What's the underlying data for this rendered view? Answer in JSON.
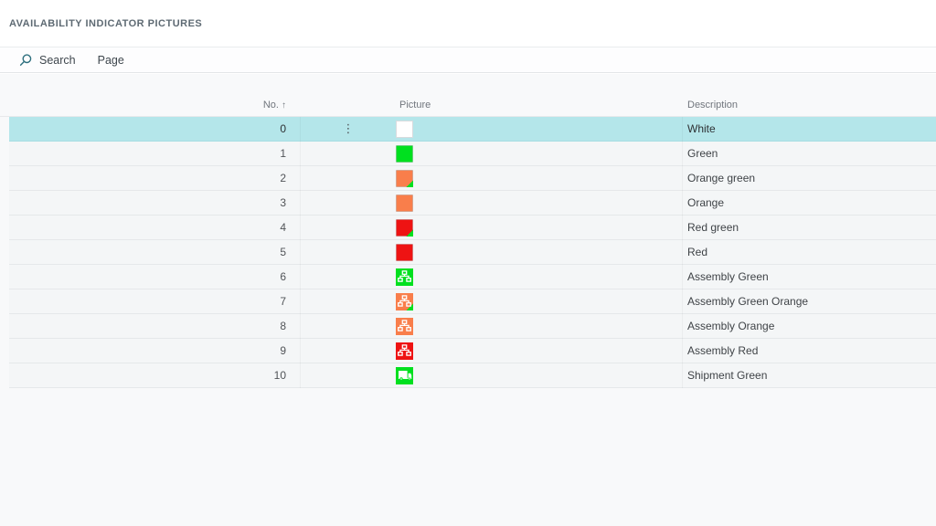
{
  "page": {
    "title": "AVAILABILITY INDICATOR PICTURES"
  },
  "toolbar": {
    "search_label": "Search",
    "page_label": "Page"
  },
  "table": {
    "columns": {
      "no_label": "No.",
      "no_sort_indicator": "↑",
      "picture_label": "Picture",
      "description_label": "Description"
    },
    "row_menu_glyph": "⋮",
    "rows": [
      {
        "no": "0",
        "description": "White",
        "selected": true,
        "icon": {
          "type": "square",
          "color": "white"
        }
      },
      {
        "no": "1",
        "description": "Green",
        "selected": false,
        "icon": {
          "type": "square",
          "color": "green"
        }
      },
      {
        "no": "2",
        "description": "Orange green",
        "selected": false,
        "icon": {
          "type": "square",
          "color": "orange",
          "corner": "green"
        }
      },
      {
        "no": "3",
        "description": "Orange",
        "selected": false,
        "icon": {
          "type": "square",
          "color": "orange"
        }
      },
      {
        "no": "4",
        "description": "Red green",
        "selected": false,
        "icon": {
          "type": "square",
          "color": "red",
          "corner": "green"
        }
      },
      {
        "no": "5",
        "description": "Red",
        "selected": false,
        "icon": {
          "type": "square",
          "color": "red"
        }
      },
      {
        "no": "6",
        "description": "Assembly Green",
        "selected": false,
        "icon": {
          "type": "assembly",
          "color": "green"
        }
      },
      {
        "no": "7",
        "description": "Assembly Green Orange",
        "selected": false,
        "icon": {
          "type": "assembly",
          "color": "orange",
          "corner": "green"
        }
      },
      {
        "no": "8",
        "description": "Assembly Orange",
        "selected": false,
        "icon": {
          "type": "assembly",
          "color": "orange"
        }
      },
      {
        "no": "9",
        "description": "Assembly Red",
        "selected": false,
        "icon": {
          "type": "assembly",
          "color": "red"
        }
      },
      {
        "no": "10",
        "description": "Shipment Green",
        "selected": false,
        "icon": {
          "type": "truck",
          "color": "green"
        }
      }
    ]
  },
  "colors": {
    "white": "#ffffff",
    "green": "#00e01f",
    "orange": "#f97e4b",
    "red": "#ee1313",
    "selected_row": "#b4e6ea",
    "toolbar_icon": "#2d6f7e"
  }
}
